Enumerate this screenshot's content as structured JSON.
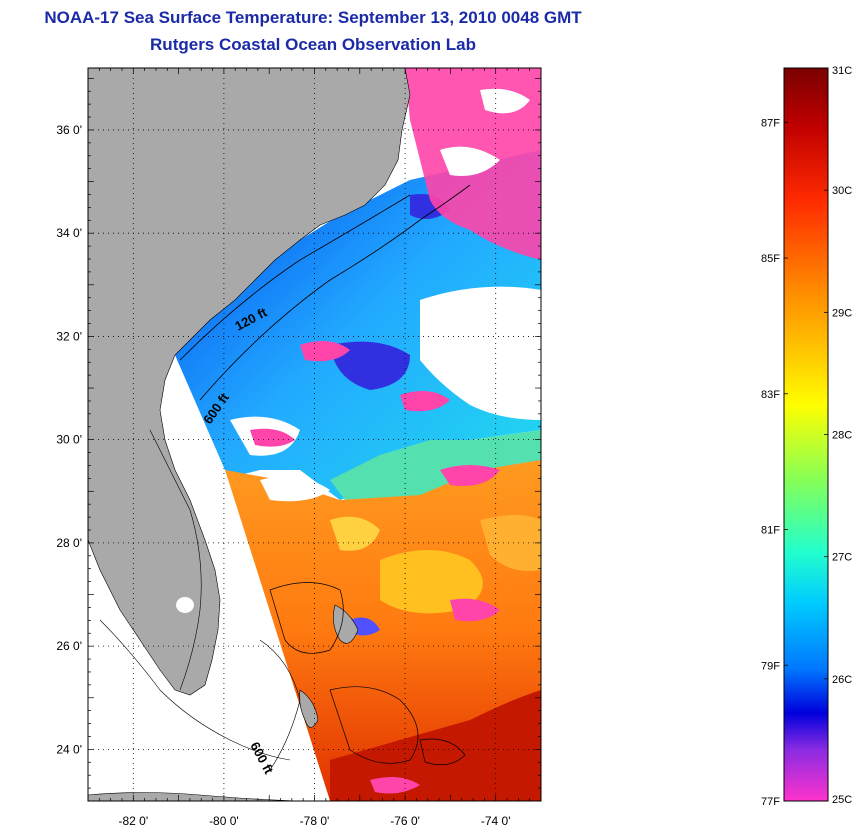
{
  "title": {
    "line1": "NOAA-17 Sea Surface Temperature:  September 13, 2010 0048 GMT",
    "line2": "Rutgers Coastal Ocean Observation Lab"
  },
  "map": {
    "lat_ticks": [
      {
        "value": 36,
        "label": "36 0'"
      },
      {
        "value": 34,
        "label": "34 0'"
      },
      {
        "value": 32,
        "label": "32 0'"
      },
      {
        "value": 30,
        "label": "30 0'"
      },
      {
        "value": 28,
        "label": "28 0'"
      },
      {
        "value": 26,
        "label": "26 0'"
      },
      {
        "value": 24,
        "label": "24 0'"
      }
    ],
    "lon_ticks": [
      {
        "value": -82,
        "label": "-82 0'"
      },
      {
        "value": -80,
        "label": "-80 0'"
      },
      {
        "value": -78,
        "label": "-78 0'"
      },
      {
        "value": -76,
        "label": "-76 0'"
      },
      {
        "value": -74,
        "label": "-74 0'"
      }
    ],
    "lat_range": [
      23,
      37.2
    ],
    "lon_range": [
      -83,
      -73
    ],
    "contour_labels": [
      {
        "text": "120 ft"
      },
      {
        "text": "600 ft"
      },
      {
        "text": "600 ft"
      }
    ],
    "colors": {
      "land": "#a9a9a9",
      "ocean_no_data": "#ffffff",
      "cloud_flag": "#ff44aa"
    }
  },
  "colorbar": {
    "celsius": [
      {
        "value": 31,
        "label": "31C"
      },
      {
        "value": 30,
        "label": "30C"
      },
      {
        "value": 29,
        "label": "29C"
      },
      {
        "value": 28,
        "label": "28C"
      },
      {
        "value": 27,
        "label": "27C"
      },
      {
        "value": 26,
        "label": "26C"
      },
      {
        "value": 25,
        "label": "25C"
      }
    ],
    "fahrenheit": [
      {
        "value": 87,
        "label": "87F"
      },
      {
        "value": 85,
        "label": "85F"
      },
      {
        "value": 83,
        "label": "83F"
      },
      {
        "value": 81,
        "label": "81F"
      },
      {
        "value": 79,
        "label": "79F"
      },
      {
        "value": 77,
        "label": "77F"
      }
    ],
    "range_c": [
      25,
      31
    ],
    "gradient": [
      "#7a0000",
      "#d00000",
      "#ff3300",
      "#ff7f00",
      "#ffcc00",
      "#ffff00",
      "#aaff44",
      "#44ffaa",
      "#00ddff",
      "#0088ff",
      "#0000dd",
      "#8a2be2",
      "#ff33cc"
    ]
  }
}
